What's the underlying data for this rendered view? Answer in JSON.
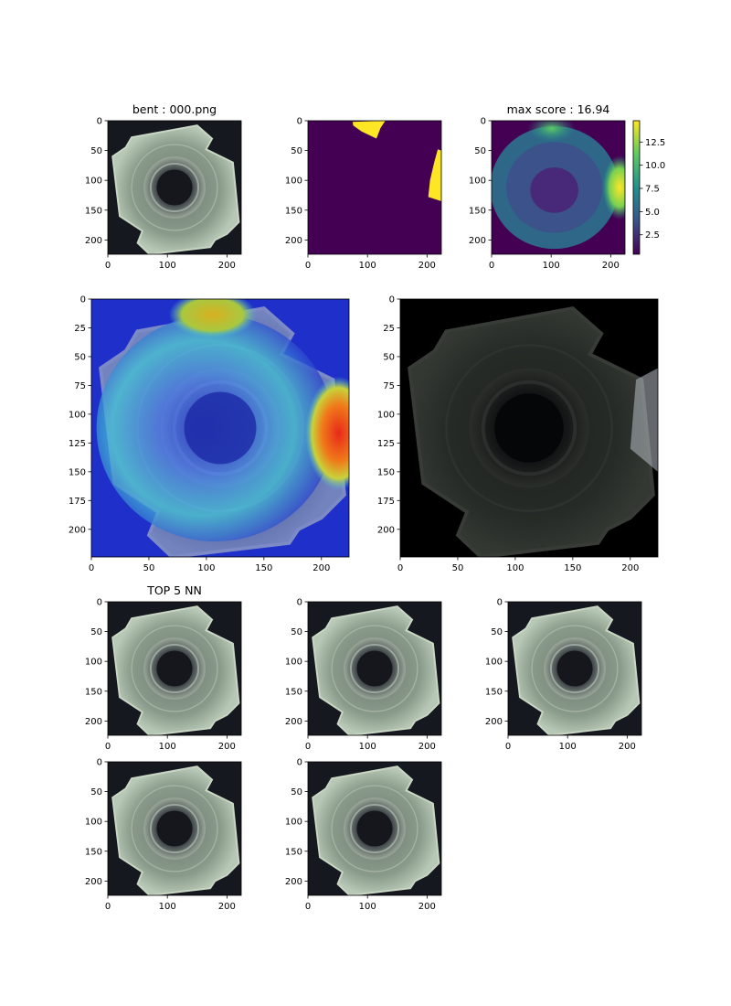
{
  "figure": {
    "panels": [
      {
        "id": "input",
        "title": "bent : 000.png",
        "content": "metal-nut-image"
      },
      {
        "id": "mask",
        "title": "",
        "content": "ground-truth-mask"
      },
      {
        "id": "score-map",
        "title": "max score : 16.94",
        "content": "anomaly-score-heatmap"
      },
      {
        "id": "overlay",
        "title": "",
        "content": "heatmap-overlay-on-image"
      },
      {
        "id": "masked-image",
        "title": "",
        "content": "dimmed-anomaly-highlight"
      },
      {
        "id": "nn-1",
        "title": "TOP 5 NN",
        "content": "nearest-neighbor-image"
      },
      {
        "id": "nn-2",
        "title": "",
        "content": "nearest-neighbor-image"
      },
      {
        "id": "nn-3",
        "title": "",
        "content": "nearest-neighbor-image"
      },
      {
        "id": "nn-4",
        "title": "",
        "content": "nearest-neighbor-image"
      },
      {
        "id": "nn-5",
        "title": "",
        "content": "nearest-neighbor-image"
      }
    ],
    "colorbar": {
      "colormap": "viridis",
      "ticks": [
        "2.5",
        "5.0",
        "7.5",
        "10.0",
        "12.5"
      ],
      "range": [
        0.4,
        14.8
      ]
    }
  },
  "chart_data": [
    {
      "type": "heatmap",
      "title": "bent : 000.png",
      "xlim": [
        0,
        224
      ],
      "ylim": [
        224,
        0
      ],
      "xticks": [
        0,
        100,
        200
      ],
      "yticks": [
        0,
        50,
        100,
        150,
        200
      ]
    },
    {
      "type": "heatmap",
      "title": "",
      "xlim": [
        0,
        224
      ],
      "ylim": [
        224,
        0
      ],
      "xticks": [
        0,
        100,
        200
      ],
      "yticks": [
        0,
        50,
        100,
        150,
        200
      ],
      "colormap": "viridis"
    },
    {
      "type": "heatmap",
      "title": "max score : 16.94",
      "xlim": [
        0,
        224
      ],
      "ylim": [
        224,
        0
      ],
      "xticks": [
        0,
        100,
        200
      ],
      "yticks": [
        0,
        50,
        100,
        150,
        200
      ],
      "colormap": "viridis",
      "colorbar_ticks": [
        2.5,
        5.0,
        7.5,
        10.0,
        12.5
      ]
    },
    {
      "type": "heatmap",
      "title": "",
      "xlim": [
        0,
        224
      ],
      "ylim": [
        224,
        0
      ],
      "xticks": [
        0,
        50,
        100,
        150,
        200
      ],
      "yticks": [
        0,
        25,
        50,
        75,
        100,
        125,
        150,
        175,
        200
      ],
      "colormap": "jet"
    },
    {
      "type": "heatmap",
      "title": "",
      "xlim": [
        0,
        224
      ],
      "ylim": [
        224,
        0
      ],
      "xticks": [
        0,
        50,
        100,
        150,
        200
      ],
      "yticks": [
        0,
        25,
        50,
        75,
        100,
        125,
        150,
        175,
        200
      ]
    },
    {
      "type": "heatmap",
      "title": "TOP 5 NN",
      "xlim": [
        0,
        224
      ],
      "ylim": [
        224,
        0
      ],
      "xticks": [
        0,
        100,
        200
      ],
      "yticks": [
        0,
        50,
        100,
        150,
        200
      ]
    },
    {
      "type": "heatmap",
      "title": "",
      "xlim": [
        0,
        224
      ],
      "ylim": [
        224,
        0
      ],
      "xticks": [
        0,
        100,
        200
      ],
      "yticks": [
        0,
        50,
        100,
        150,
        200
      ]
    },
    {
      "type": "heatmap",
      "title": "",
      "xlim": [
        0,
        224
      ],
      "ylim": [
        224,
        0
      ],
      "xticks": [
        0,
        100,
        200
      ],
      "yticks": [
        0,
        50,
        100,
        150,
        200
      ]
    },
    {
      "type": "heatmap",
      "title": "",
      "xlim": [
        0,
        224
      ],
      "ylim": [
        224,
        0
      ],
      "xticks": [
        0,
        100,
        200
      ],
      "yticks": [
        0,
        50,
        100,
        150,
        200
      ]
    },
    {
      "type": "heatmap",
      "title": "",
      "xlim": [
        0,
        224
      ],
      "ylim": [
        224,
        0
      ],
      "xticks": [
        0,
        100,
        200
      ],
      "yticks": [
        0,
        50,
        100,
        150,
        200
      ]
    }
  ]
}
